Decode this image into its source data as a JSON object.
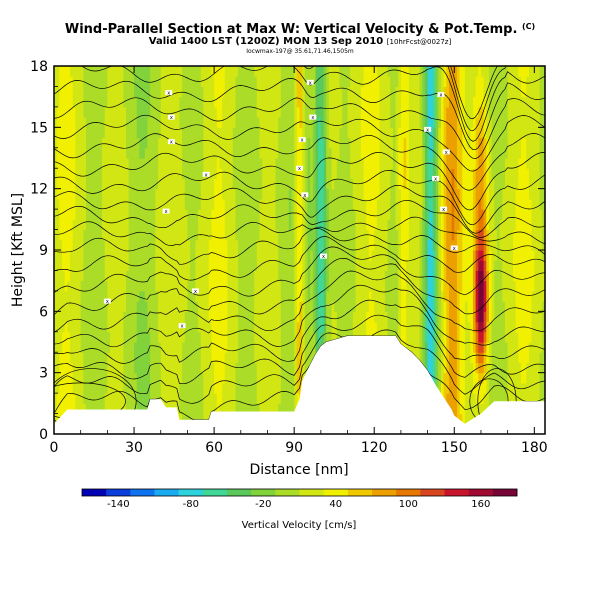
{
  "header": {
    "title": "Wind-Parallel Section at Max W: Vertical Velocity & Pot.Temp.",
    "title_mark": "(C)",
    "subtitle": "Valid 1400 LST (1200Z) MON 13 Sep 2010",
    "subtitle_note": "[10hrFcst@0027z]",
    "subtitle2": "Iocwmax-197@ 35.61,71.46,1505m"
  },
  "chart_data": {
    "type": "heatmap",
    "title": "Wind-Parallel Section at Max W: Vertical Velocity & Pot.Temp.",
    "xlabel": "Distance [nm]",
    "ylabel": "Height [Kft MSL]",
    "xlim": [
      0,
      184
    ],
    "ylim": [
      0,
      18
    ],
    "x_ticks": [
      0,
      30,
      60,
      90,
      120,
      150,
      180
    ],
    "y_ticks": [
      0,
      3,
      6,
      9,
      12,
      15,
      18
    ],
    "colorbar": {
      "label": "Vertical Velocity [cm/s]",
      "tick_labels": [
        -140,
        -80,
        -20,
        40,
        100,
        160
      ],
      "min": -170,
      "max": 190,
      "colors": [
        "#0000b4",
        "#0b3cdc",
        "#0f73f0",
        "#19aaf0",
        "#2dd2dc",
        "#41d796",
        "#5ac85a",
        "#82d23c",
        "#aadc28",
        "#d2e614",
        "#f0f000",
        "#f0c800",
        "#eba000",
        "#e67800",
        "#d7461e",
        "#c8142d",
        "#a00a32",
        "#780537"
      ]
    },
    "terrain_profile": [
      [
        0,
        0.5
      ],
      [
        5,
        1.2
      ],
      [
        8,
        1.2
      ],
      [
        35,
        1.2
      ],
      [
        36,
        1.7
      ],
      [
        40,
        1.7
      ],
      [
        42,
        1.3
      ],
      [
        46,
        1.3
      ],
      [
        47,
        0.7
      ],
      [
        58,
        0.7
      ],
      [
        59,
        1.1
      ],
      [
        90,
        1.1
      ],
      [
        92,
        1.7
      ],
      [
        93,
        2.6
      ],
      [
        96,
        3.4
      ],
      [
        98,
        3.9
      ],
      [
        100,
        4.3
      ],
      [
        102,
        4.5
      ],
      [
        110,
        4.8
      ],
      [
        128,
        4.8
      ],
      [
        130,
        4.4
      ],
      [
        134,
        4.0
      ],
      [
        137,
        3.6
      ],
      [
        140,
        3.1
      ],
      [
        143,
        2.4
      ],
      [
        146,
        1.8
      ],
      [
        149,
        1.2
      ],
      [
        150,
        0.9
      ],
      [
        154,
        0.5
      ],
      [
        160,
        1.0
      ],
      [
        165,
        1.6
      ],
      [
        184,
        1.6
      ]
    ],
    "updraft_columns": [
      {
        "x_center": 92,
        "w": 60,
        "half_width": 2.0
      },
      {
        "x_center": 95,
        "w": -20,
        "half_width": 1.5
      },
      {
        "x_center": 100,
        "w": -80,
        "half_width": 2.5
      },
      {
        "x_center": 131,
        "w": 45,
        "half_width": 2.0
      },
      {
        "x_center": 141,
        "w": -90,
        "half_width": 2.5
      },
      {
        "x_center": 149,
        "w": 95,
        "half_width": 4.0
      },
      {
        "x_center": 160,
        "w": 170,
        "half_width": 2.5
      }
    ],
    "theta_labels": [
      {
        "x": 20,
        "y": 6.5,
        "text": "x"
      },
      {
        "x": 43,
        "y": 16.7,
        "text": "x"
      },
      {
        "x": 44,
        "y": 15.5,
        "text": "x"
      },
      {
        "x": 44,
        "y": 14.3,
        "text": "x"
      },
      {
        "x": 42,
        "y": 10.9,
        "text": "x"
      },
      {
        "x": 57,
        "y": 12.7,
        "text": "x"
      },
      {
        "x": 53,
        "y": 7.0,
        "text": "x"
      },
      {
        "x": 48,
        "y": 5.3,
        "text": "x"
      },
      {
        "x": 93,
        "y": 14.4,
        "text": "x"
      },
      {
        "x": 96,
        "y": 17.2,
        "text": "x"
      },
      {
        "x": 97,
        "y": 15.5,
        "text": "x"
      },
      {
        "x": 92,
        "y": 13.0,
        "text": "x"
      },
      {
        "x": 94,
        "y": 11.7,
        "text": "x"
      },
      {
        "x": 101,
        "y": 8.7,
        "text": "x"
      },
      {
        "x": 140,
        "y": 14.9,
        "text": "x"
      },
      {
        "x": 145,
        "y": 16.6,
        "text": "x"
      },
      {
        "x": 147,
        "y": 13.8,
        "text": "x"
      },
      {
        "x": 143,
        "y": 12.5,
        "text": "x"
      },
      {
        "x": 146,
        "y": 11.0,
        "text": "x"
      },
      {
        "x": 150,
        "y": 9.1,
        "text": "x"
      }
    ]
  }
}
